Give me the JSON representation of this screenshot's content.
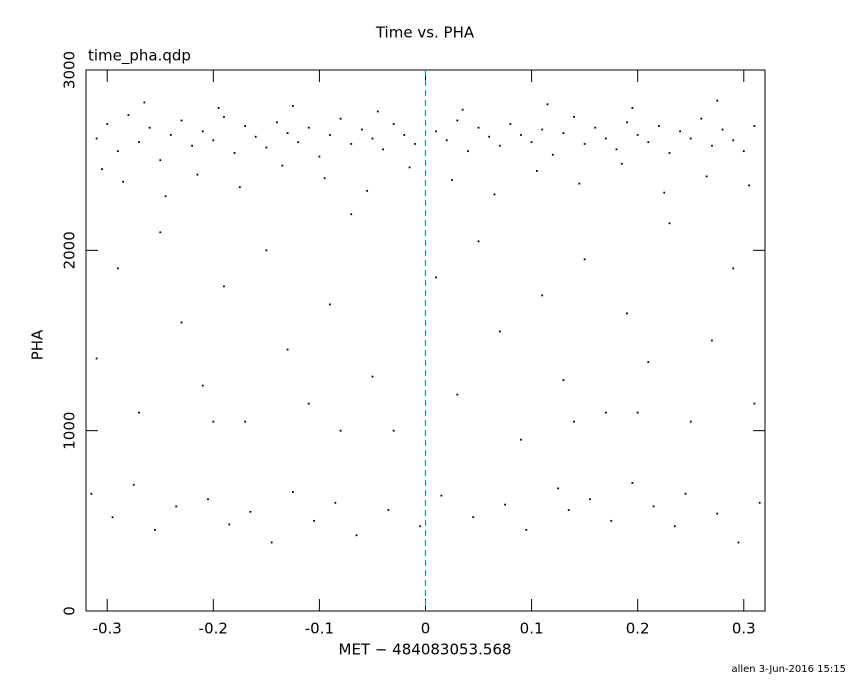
{
  "chart_data": {
    "type": "scatter",
    "title": "Time vs. PHA",
    "subtitle": "time_pha.qdp",
    "x_label": "MET − 484083053.568",
    "y_label": "PHA",
    "footer": "allen  3-Jun-2016 15:15",
    "xlim": [
      -0.32,
      0.32
    ],
    "ylim": [
      0,
      3000
    ],
    "xticks": [
      -0.3,
      -0.2,
      -0.1,
      0,
      0.1,
      0.2,
      0.3
    ],
    "yticks": [
      0,
      1000,
      2000,
      3000
    ],
    "vline": 0,
    "vline_color": "#1a9a9a",
    "color": "#000000",
    "x": [
      -0.31,
      -0.3,
      -0.29,
      -0.28,
      -0.27,
      -0.26,
      -0.25,
      -0.24,
      -0.23,
      -0.22,
      -0.21,
      -0.2,
      -0.19,
      -0.18,
      -0.17,
      -0.16,
      -0.15,
      -0.14,
      -0.13,
      -0.12,
      -0.11,
      -0.1,
      -0.09,
      -0.08,
      -0.07,
      -0.06,
      -0.05,
      -0.04,
      -0.03,
      -0.02,
      -0.01,
      0.01,
      0.02,
      0.03,
      0.04,
      0.05,
      0.06,
      0.07,
      0.08,
      0.09,
      0.1,
      0.11,
      0.12,
      0.13,
      0.14,
      0.15,
      0.16,
      0.17,
      0.18,
      0.19,
      0.2,
      0.21,
      0.22,
      0.23,
      0.24,
      0.25,
      0.26,
      0.27,
      0.28,
      0.29,
      0.3,
      0.31,
      -0.305,
      -0.285,
      -0.245,
      -0.215,
      -0.175,
      -0.135,
      -0.095,
      -0.055,
      -0.015,
      0.025,
      0.065,
      0.105,
      0.145,
      0.185,
      0.225,
      0.265,
      0.305,
      -0.265,
      -0.195,
      -0.125,
      -0.045,
      0.035,
      0.115,
      0.195,
      0.275,
      -0.31,
      -0.29,
      -0.27,
      -0.25,
      -0.23,
      -0.21,
      -0.19,
      -0.17,
      -0.15,
      -0.13,
      -0.11,
      -0.09,
      -0.07,
      -0.05,
      -0.03,
      0.01,
      0.03,
      0.05,
      0.07,
      0.09,
      0.11,
      0.13,
      0.15,
      0.17,
      0.19,
      0.21,
      0.23,
      0.25,
      0.27,
      0.29,
      0.31,
      -0.2,
      0.2,
      -0.08,
      0.14,
      -0.315,
      -0.295,
      -0.275,
      -0.255,
      -0.235,
      -0.205,
      -0.185,
      -0.165,
      -0.145,
      -0.125,
      -0.105,
      -0.085,
      -0.065,
      -0.035,
      -0.005,
      0.015,
      0.045,
      0.075,
      0.095,
      0.125,
      0.135,
      0.155,
      0.175,
      0.195,
      0.215,
      0.235,
      0.245,
      0.275,
      0.295,
      0.315
    ],
    "values": [
      2620,
      2700,
      2550,
      2750,
      2600,
      2680,
      2500,
      2640,
      2720,
      2580,
      2660,
      2610,
      2740,
      2540,
      2690,
      2630,
      2570,
      2710,
      2650,
      2600,
      2680,
      2520,
      2640,
      2730,
      2590,
      2670,
      2620,
      2560,
      2700,
      2640,
      2590,
      2660,
      2610,
      2720,
      2550,
      2680,
      2630,
      2580,
      2700,
      2640,
      2600,
      2670,
      2530,
      2650,
      2740,
      2590,
      2680,
      2620,
      2560,
      2710,
      2640,
      2600,
      2690,
      2540,
      2660,
      2620,
      2730,
      2580,
      2670,
      2610,
      2550,
      2690,
      2450,
      2380,
      2300,
      2420,
      2350,
      2470,
      2400,
      2330,
      2460,
      2390,
      2310,
      2440,
      2370,
      2480,
      2320,
      2410,
      2360,
      2820,
      2790,
      2800,
      2770,
      2780,
      2810,
      2790,
      2830,
      1400,
      1900,
      1100,
      2100,
      1600,
      1250,
      1800,
      1050,
      2000,
      1450,
      1150,
      1700,
      2200,
      1300,
      1000,
      1850,
      1200,
      2050,
      1550,
      950,
      1750,
      1280,
      1950,
      1100,
      1650,
      1380,
      2150,
      1050,
      1500,
      1900,
      1150,
      1050,
      1100,
      1000,
      1050,
      650,
      520,
      700,
      450,
      580,
      620,
      480,
      550,
      380,
      660,
      500,
      600,
      420,
      560,
      470,
      640,
      520,
      590,
      450,
      680,
      560,
      620,
      500,
      710,
      580,
      470,
      650,
      540,
      380,
      600
    ]
  }
}
